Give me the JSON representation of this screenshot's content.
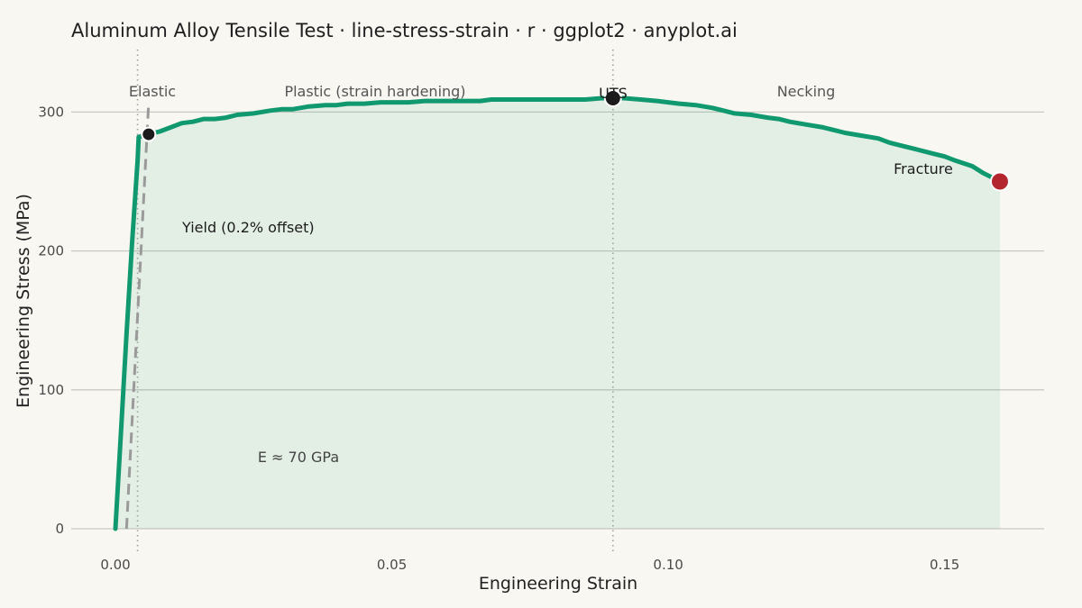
{
  "chart_data": {
    "type": "line",
    "title": "Aluminum Alloy Tensile Test · line-stress-strain · r · ggplot2 · anyplot.ai",
    "xlabel": "Engineering Strain",
    "ylabel": "Engineering Stress (MPa)",
    "xlim": [
      -0.008,
      0.168
    ],
    "ylim": [
      0,
      345
    ],
    "x_ticks": [
      0.0,
      0.05,
      0.1,
      0.15
    ],
    "x_tick_labels": [
      "0.00",
      "0.05",
      "0.10",
      "0.15"
    ],
    "y_ticks": [
      0,
      100,
      200,
      300
    ],
    "y_tick_labels": [
      "0",
      "100",
      "200",
      "300"
    ],
    "grid": "horizontal",
    "legend": "none",
    "series": [
      {
        "x": [
          0.0,
          0.001,
          0.002,
          0.003,
          0.004,
          0.0042,
          0.005,
          0.006,
          0.008,
          0.01,
          0.012,
          0.014,
          0.016,
          0.018,
          0.02,
          0.022,
          0.025,
          0.028,
          0.03,
          0.032,
          0.035,
          0.038,
          0.04,
          0.042,
          0.045,
          0.048,
          0.05,
          0.053,
          0.056,
          0.058,
          0.06,
          0.063,
          0.066,
          0.068,
          0.07,
          0.072,
          0.075,
          0.078,
          0.08,
          0.082,
          0.085,
          0.088,
          0.09,
          0.092,
          0.095,
          0.098,
          0.1,
          0.102,
          0.105,
          0.108,
          0.11,
          0.112,
          0.115,
          0.118,
          0.12,
          0.122,
          0.125,
          0.128,
          0.13,
          0.132,
          0.135,
          0.138,
          0.14,
          0.142,
          0.145,
          0.148,
          0.15,
          0.152,
          0.155,
          0.157,
          0.16
        ],
        "y": [
          0,
          70,
          140,
          205,
          265,
          282,
          283,
          284,
          286,
          289,
          292,
          293,
          295,
          295,
          296,
          298,
          299,
          301,
          302,
          302,
          304,
          305,
          305,
          306,
          306,
          307,
          307,
          307,
          308,
          308,
          308,
          308,
          308,
          309,
          309,
          309,
          309,
          309,
          309,
          309,
          309,
          310,
          310,
          310,
          309,
          308,
          307,
          306,
          305,
          303,
          301,
          299,
          298,
          296,
          295,
          293,
          291,
          289,
          287,
          285,
          283,
          281,
          278,
          276,
          273,
          270,
          268,
          265,
          261,
          256,
          250
        ]
      }
    ],
    "offset_line": {
      "x": [
        0.002,
        0.006
      ],
      "y": [
        0,
        306
      ]
    },
    "shaded_area": "under-curve",
    "points": {
      "yield": {
        "x": 0.006,
        "y": 284
      },
      "uts": {
        "x": 0.09,
        "y": 310
      },
      "fracture": {
        "x": 0.16,
        "y": 250
      }
    },
    "vlines": [
      0.004,
      0.09
    ],
    "annotations": {
      "elastic": "Elastic",
      "plastic": "Plastic (strain hardening)",
      "uts": "UTS",
      "necking": "Necking",
      "fracture": "Fracture",
      "yield": "Yield (0.2% offset)",
      "modulus": "E ≈ 70 GPa"
    },
    "colors": {
      "curve": "#10996e",
      "fill": "#10996e",
      "offset": "#9a9a9a",
      "grid": "#c9c9c4",
      "vline": "#a0a0a0",
      "point": "#1b1b1b",
      "fracture": "#b3262e",
      "background": "#f9f7f1"
    }
  }
}
